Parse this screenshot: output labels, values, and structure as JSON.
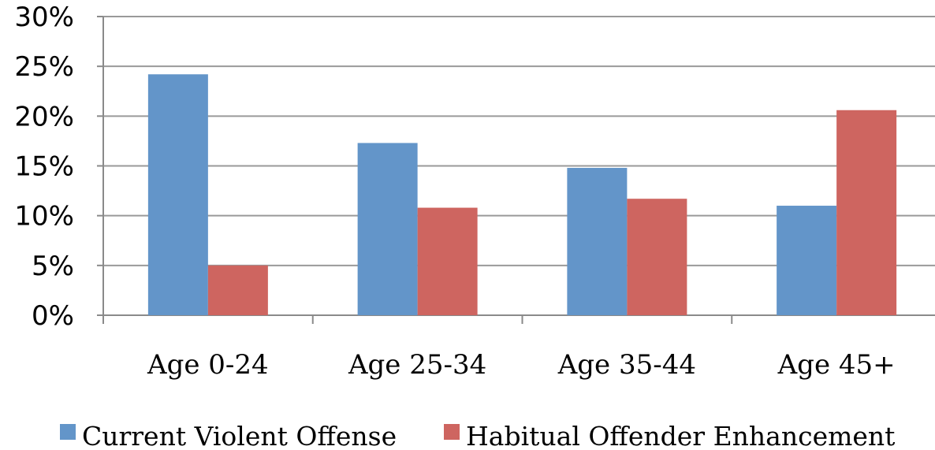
{
  "chart_data": {
    "type": "bar",
    "title": "",
    "xlabel": "",
    "ylabel": "",
    "categories": [
      "Age 0-24",
      "Age 25-34",
      "Age 35-44",
      "Age 45+"
    ],
    "series": [
      {
        "name": "Current Violent Offense",
        "color": "#6395C9",
        "values": [
          24.2,
          17.3,
          14.8,
          11.0
        ]
      },
      {
        "name": "Habitual Offender Enhancement",
        "color": "#CE6560",
        "values": [
          5.0,
          10.8,
          11.7,
          20.6
        ]
      }
    ],
    "ylim": [
      0,
      30
    ],
    "yticks": [
      0,
      5,
      10,
      15,
      20,
      25,
      30
    ],
    "ytick_labels": [
      "0%",
      "5%",
      "10%",
      "15%",
      "20%",
      "25%",
      "30%"
    ],
    "grid": true,
    "legend_position": "bottom"
  }
}
